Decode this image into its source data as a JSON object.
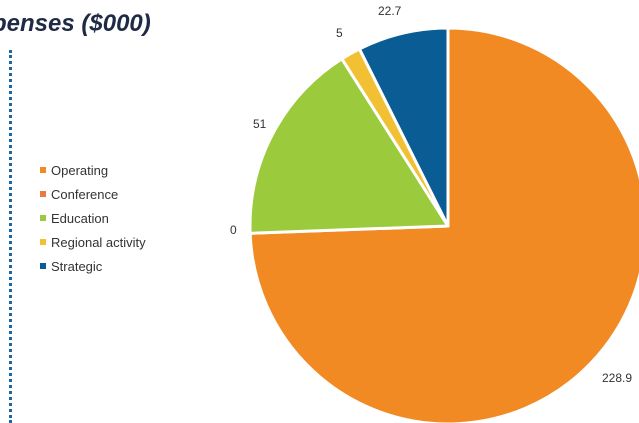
{
  "chart_data": {
    "type": "pie",
    "title": "penses ($000)",
    "categories": [
      "Operating",
      "Conference",
      "Education",
      "Regional activity",
      "Strategic"
    ],
    "values": [
      228.9,
      0,
      51,
      5,
      22.7
    ],
    "data_labels": [
      "228.9",
      "0",
      "51",
      "5",
      "22.7"
    ],
    "colors": [
      "#f28a24",
      "#ea7a45",
      "#9bca3c",
      "#f2c033",
      "#0a5d94"
    ],
    "legend_position": "left"
  }
}
